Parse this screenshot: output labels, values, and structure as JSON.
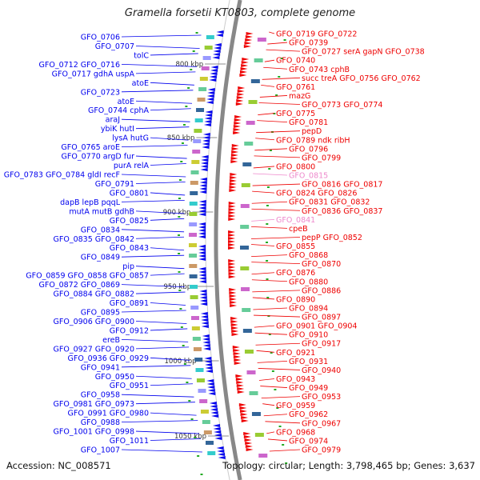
{
  "title": "Gramella forsetii KT0803, complete genome",
  "footer": {
    "accession": "Accession: NC_008571",
    "summary": "Topology: circular; Length: 3,798,465 bp; Genes: 3,637"
  },
  "colors": {
    "minus_strand": "#0000ee",
    "plus_strand": "#ee0000",
    "rna": "#ee88cc",
    "backbone": "#888888",
    "tick": "#22aa22"
  },
  "scale_labels": [
    "800 kbp",
    "850 kbp",
    "900 kbp",
    "950 kbp",
    "1000 kbp",
    "1050 kbp"
  ],
  "left_labels": [
    [
      "GFO_0706"
    ],
    [
      "GFO_0707"
    ],
    [
      "tolC"
    ],
    [
      "GFO_0712",
      "GFO_0716"
    ],
    [
      "GFO_0717",
      "gdhA",
      "uspA"
    ],
    [
      "atoE"
    ],
    [
      "GFO_0723"
    ],
    [
      "atoE"
    ],
    [
      "GFO_0744",
      "cphA"
    ],
    [
      "araJ"
    ],
    [
      "ybiK",
      "hutI"
    ],
    [
      "lysA",
      "hutG"
    ],
    [
      "GFO_0765",
      "aroE"
    ],
    [
      "GFO_0770",
      "argD",
      "fur"
    ],
    [
      "purA",
      "relA"
    ],
    [
      "GFO_0783",
      "GFO_0784",
      "gldI",
      "recF"
    ],
    [
      "GFO_0791"
    ],
    [
      "GFO_0801"
    ],
    [
      "dapB",
      "lepB",
      "pqqL"
    ],
    [
      "mutA",
      "mutB",
      "gdhB"
    ],
    [
      "GFO_0825"
    ],
    [
      "GFO_0834"
    ],
    [
      "GFO_0835",
      "GFO_0842"
    ],
    [
      "GFO_0843"
    ],
    [
      "GFO_0849"
    ],
    [
      "pip"
    ],
    [
      "GFO_0859",
      "GFO_0858",
      "GFO_0857"
    ],
    [
      "GFO_0872",
      "GFO_0869"
    ],
    [
      "GFO_0884",
      "GFO_0882"
    ],
    [
      "GFO_0891"
    ],
    [
      "GFO_0895"
    ],
    [
      "GFO_0906",
      "GFO_0900"
    ],
    [
      "GFO_0912"
    ],
    [
      "ereB"
    ],
    [
      "GFO_0927",
      "GFO_0920"
    ],
    [
      "GFO_0936",
      "GFO_0929"
    ],
    [
      "GFO_0941"
    ],
    [
      "GFO_0950"
    ],
    [
      "GFO_0951"
    ],
    [
      "GFO_0958"
    ],
    [
      "GFO_0981",
      "GFO_0973"
    ],
    [
      "GFO_0991",
      "GFO_0980"
    ],
    [
      "GFO_0988"
    ],
    [
      "GFO_1001",
      "GFO_0998"
    ],
    [
      "GFO_1011"
    ],
    [
      "GFO_1007"
    ]
  ],
  "right_labels": [
    [
      "GFO_0719",
      "GFO_0722"
    ],
    [
      "GFO_0739"
    ],
    [
      "GFO_0727",
      "serA",
      "gapN",
      "GFO_0738"
    ],
    [
      "GFO_0740"
    ],
    [
      "GFO_0743",
      "cphB"
    ],
    [
      "succ",
      "treA",
      "GFO_0756",
      "GFO_0762"
    ],
    [
      "GFO_0761"
    ],
    [
      "mazG"
    ],
    [
      "GFO_0773",
      "GFO_0774"
    ],
    [
      "GFO_0775"
    ],
    [
      "GFO_0781"
    ],
    [
      "pepD"
    ],
    [
      "GFO_0789",
      "ndk",
      "ribH"
    ],
    [
      "GFO_0796"
    ],
    [
      "GFO_0799"
    ],
    [
      "GFO_0800"
    ],
    [
      "GFO_0815"
    ],
    [
      "GFO_0816",
      "GFO_0817"
    ],
    [
      "GFO_0824",
      "GFO_0826"
    ],
    [
      "GFO_0831",
      "GFO_0832"
    ],
    [
      "GFO_0836",
      "GFO_0837"
    ],
    [
      "GFO_0841"
    ],
    [
      "cpeB"
    ],
    [
      "pepP",
      "GFO_0852"
    ],
    [
      "GFO_0855"
    ],
    [
      "GFO_0868"
    ],
    [
      "GFO_0870"
    ],
    [
      "GFO_0876"
    ],
    [
      "GFO_0880"
    ],
    [
      "GFO_0886"
    ],
    [
      "GFO_0890"
    ],
    [
      "GFO_0894"
    ],
    [
      "GFO_0897"
    ],
    [
      "GFO_0901",
      "GFO_0904"
    ],
    [
      "GFO_0910"
    ],
    [
      "GFO_0917"
    ],
    [
      "GFO_0921"
    ],
    [
      "GFO_0931"
    ],
    [
      "GFO_0940"
    ],
    [
      "GFO_0943"
    ],
    [
      "GFO_0949"
    ],
    [
      "GFO_0953"
    ],
    [
      "GFO_0959"
    ],
    [
      "GFO_0962"
    ],
    [
      "GFO_0967"
    ],
    [
      "GFO_0968"
    ],
    [
      "GFO_0974"
    ],
    [
      "GFO_0979"
    ]
  ],
  "rna_labels": [
    "GFO_0815",
    "GFO_0841"
  ]
}
